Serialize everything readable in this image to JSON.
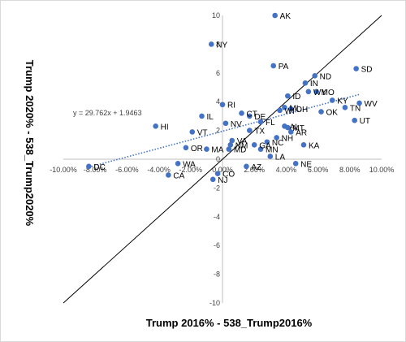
{
  "chart_data": {
    "type": "scatter",
    "xlabel": "Trump 2016% - 538_Trump2016%",
    "ylabel": "Trump 2020% - 538_Trump2020%",
    "xlim": [
      -10,
      10
    ],
    "ylim": [
      -10,
      10
    ],
    "x_ticks": [
      "-10.00%",
      "-8.00%",
      "-6.00%",
      "-4.00%",
      "-2.00%",
      "0.00%",
      "2.00%",
      "4.00%",
      "6.00%",
      "8.00%",
      "10.00%"
    ],
    "y_ticks": [
      "-10",
      "-8",
      "-6",
      "-4",
      "-2",
      "0",
      "2",
      "4",
      "6",
      "8",
      "10"
    ],
    "point_color": "#4472c4",
    "trendline": {
      "equation": "y = 29.762x + 1.9463",
      "slope": 0.29762,
      "intercept": 1.9463,
      "style": "dotted",
      "color": "#4472c4"
    },
    "reference_line": {
      "slope": 1,
      "intercept": 0,
      "color": "#000000"
    },
    "points": [
      {
        "label": "AK",
        "x": 3.3,
        "y": 10.0
      },
      {
        "label": "NY",
        "x": -0.7,
        "y": 8.0
      },
      {
        "label": "SD",
        "x": 8.4,
        "y": 6.3
      },
      {
        "label": "PA",
        "x": 3.2,
        "y": 6.5
      },
      {
        "label": "ND",
        "x": 5.8,
        "y": 5.8
      },
      {
        "label": "IN",
        "x": 5.2,
        "y": 5.3
      },
      {
        "label": "WY",
        "x": 5.4,
        "y": 4.7
      },
      {
        "label": "MO",
        "x": 5.9,
        "y": 4.7
      },
      {
        "label": "ID",
        "x": 4.1,
        "y": 4.4
      },
      {
        "label": "KY",
        "x": 6.9,
        "y": 4.1
      },
      {
        "label": "WV",
        "x": 8.6,
        "y": 3.9
      },
      {
        "label": "MI",
        "x": 3.9,
        "y": 3.6
      },
      {
        "label": "OH",
        "x": 4.3,
        "y": 3.5
      },
      {
        "label": "WI",
        "x": 3.6,
        "y": 3.4
      },
      {
        "label": "TN",
        "x": 7.7,
        "y": 3.6
      },
      {
        "label": "OK",
        "x": 6.2,
        "y": 3.3
      },
      {
        "label": "RI",
        "x": 0.0,
        "y": 3.8
      },
      {
        "label": "IL",
        "x": -1.3,
        "y": 3.0
      },
      {
        "label": "CT",
        "x": 1.2,
        "y": 3.2
      },
      {
        "label": "DE",
        "x": 1.7,
        "y": 3.0
      },
      {
        "label": "FL",
        "x": 2.4,
        "y": 2.6
      },
      {
        "label": "UT",
        "x": 8.3,
        "y": 2.7
      },
      {
        "label": "HI",
        "x": -4.2,
        "y": 2.3
      },
      {
        "label": "NV",
        "x": 0.2,
        "y": 2.5
      },
      {
        "label": "TX",
        "x": 1.7,
        "y": 2.0
      },
      {
        "label": "AL",
        "x": 3.9,
        "y": 2.3
      },
      {
        "label": "MT",
        "x": 4.1,
        "y": 2.2
      },
      {
        "label": "AR",
        "x": 4.3,
        "y": 1.9
      },
      {
        "label": "VT",
        "x": -1.9,
        "y": 1.9
      },
      {
        "label": "NH",
        "x": 3.4,
        "y": 1.5
      },
      {
        "label": "NC",
        "x": 2.8,
        "y": 1.2
      },
      {
        "label": "VA",
        "x": 0.6,
        "y": 1.3
      },
      {
        "label": "NM",
        "x": 0.5,
        "y": 1.0
      },
      {
        "label": "GA",
        "x": 2.0,
        "y": 1.0
      },
      {
        "label": "KA",
        "x": 5.1,
        "y": 1.0
      },
      {
        "label": "OR",
        "x": -2.3,
        "y": 0.8
      },
      {
        "label": "MD",
        "x": 0.4,
        "y": 0.7
      },
      {
        "label": "MN",
        "x": 2.4,
        "y": 0.7
      },
      {
        "label": "MA",
        "x": -1.0,
        "y": 0.7
      },
      {
        "label": "LA",
        "x": 3.0,
        "y": 0.2
      },
      {
        "label": "NE",
        "x": 4.6,
        "y": -0.3
      },
      {
        "label": "WA",
        "x": -2.8,
        "y": -0.3
      },
      {
        "label": "AZ",
        "x": 1.5,
        "y": -0.5
      },
      {
        "label": "DC",
        "x": -8.4,
        "y": -0.5
      },
      {
        "label": "CO",
        "x": -0.3,
        "y": -1.0
      },
      {
        "label": "CA",
        "x": -3.4,
        "y": -1.1
      },
      {
        "label": "NJ",
        "x": -0.6,
        "y": -1.4
      }
    ]
  }
}
